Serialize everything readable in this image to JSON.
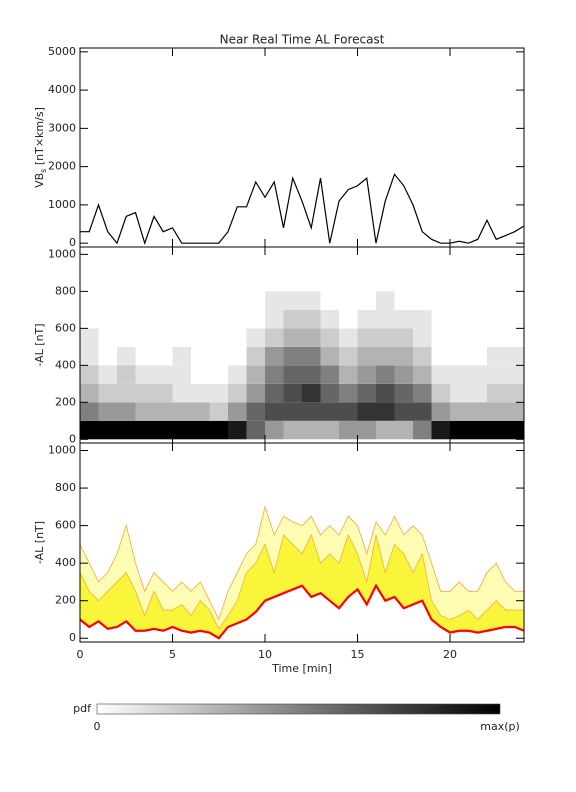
{
  "chart_data": [
    {
      "type": "line",
      "title": "Near Real Time AL Forecast",
      "ylabel": {
        "main": "VB",
        "sub": "s",
        "rest": " [nT×km/s]"
      },
      "xlim": [
        0,
        24
      ],
      "xticks": [
        0,
        5,
        10,
        15,
        20
      ],
      "ylim": [
        -100,
        5100
      ],
      "yticks": [
        0,
        1000,
        2000,
        3000,
        4000,
        5000
      ],
      "x": [
        0,
        0.5,
        1,
        1.5,
        2,
        2.5,
        3,
        3.5,
        4,
        4.5,
        5,
        5.5,
        6,
        6.5,
        7,
        7.5,
        8,
        8.5,
        9,
        9.5,
        10,
        10.5,
        11,
        11.5,
        12,
        12.5,
        13,
        13.5,
        14,
        14.5,
        15,
        15.5,
        16,
        16.5,
        17,
        17.5,
        18,
        18.5,
        19,
        19.5,
        20,
        20.5,
        21,
        21.5,
        22,
        22.5,
        23,
        23.5,
        24
      ],
      "series": [
        {
          "color": "#000000",
          "values": [
            300,
            300,
            1000,
            300,
            0,
            700,
            800,
            0,
            700,
            300,
            400,
            0,
            0,
            0,
            0,
            0,
            300,
            950,
            950,
            1600,
            1200,
            1600,
            400,
            1700,
            1100,
            400,
            1700,
            0,
            1100,
            1400,
            1500,
            1700,
            0,
            1100,
            1800,
            1500,
            1000,
            300,
            100,
            0,
            0,
            50,
            0,
            100,
            600,
            100,
            200,
            300,
            450
          ]
        }
      ]
    },
    {
      "type": "heatmap",
      "ylabel": "-AL [nT]",
      "xlim": [
        0,
        24
      ],
      "xticks": [
        0,
        5,
        10,
        15,
        20
      ],
      "ylim": [
        -20,
        1040
      ],
      "yticks": [
        0,
        200,
        400,
        600,
        800,
        1000
      ],
      "xbins": [
        0,
        1,
        2,
        3,
        4,
        5,
        6,
        7,
        8,
        9,
        10,
        11,
        12,
        13,
        14,
        15,
        16,
        17,
        18,
        19,
        20,
        21,
        22,
        23,
        24
      ],
      "ybins": [
        0,
        100,
        200,
        300,
        400,
        500,
        600,
        700,
        800
      ],
      "z": [
        [
          1,
          1,
          1,
          1,
          1,
          1,
          1,
          1,
          0.9,
          0.6,
          0.4,
          0.3,
          0.3,
          0.3,
          0.4,
          0.4,
          0.3,
          0.3,
          0.5,
          0.9,
          1,
          1,
          1,
          1
        ],
        [
          0.5,
          0.4,
          0.4,
          0.3,
          0.3,
          0.3,
          0.3,
          0.2,
          0.4,
          0.6,
          0.7,
          0.7,
          0.7,
          0.7,
          0.7,
          0.8,
          0.8,
          0.7,
          0.7,
          0.4,
          0.3,
          0.3,
          0.3,
          0.3
        ],
        [
          0.3,
          0.2,
          0.2,
          0.2,
          0.2,
          0.1,
          0.1,
          0.1,
          0.2,
          0.4,
          0.6,
          0.7,
          0.8,
          0.6,
          0.5,
          0.6,
          0.7,
          0.6,
          0.5,
          0.2,
          0.1,
          0.1,
          0.2,
          0.2
        ],
        [
          0.2,
          0.1,
          0.2,
          0.1,
          0.1,
          0.1,
          0,
          0,
          0.1,
          0.3,
          0.5,
          0.6,
          0.6,
          0.5,
          0.3,
          0.4,
          0.5,
          0.4,
          0.3,
          0.1,
          0.1,
          0.1,
          0.1,
          0.1
        ],
        [
          0.1,
          0,
          0.1,
          0,
          0,
          0.1,
          0,
          0,
          0,
          0.2,
          0.4,
          0.5,
          0.5,
          0.3,
          0.2,
          0.3,
          0.3,
          0.3,
          0.2,
          0,
          0,
          0,
          0.1,
          0.1
        ],
        [
          0.1,
          0,
          0,
          0,
          0,
          0,
          0,
          0,
          0,
          0.1,
          0.2,
          0.3,
          0.3,
          0.2,
          0.1,
          0.2,
          0.2,
          0.2,
          0.1,
          0,
          0,
          0,
          0,
          0
        ],
        [
          0,
          0,
          0,
          0,
          0,
          0,
          0,
          0,
          0,
          0,
          0.1,
          0.2,
          0.2,
          0.1,
          0,
          0.1,
          0.1,
          0.1,
          0.1,
          0,
          0,
          0,
          0,
          0
        ],
        [
          0,
          0,
          0,
          0,
          0,
          0,
          0,
          0,
          0,
          0,
          0.1,
          0.1,
          0.1,
          0,
          0,
          0,
          0.1,
          0,
          0,
          0,
          0,
          0,
          0,
          0
        ]
      ],
      "colorbar": {
        "label": "pdf",
        "min_label": "0",
        "max_label": "max(p)"
      }
    },
    {
      "type": "area",
      "ylabel": "-AL [nT]",
      "xlabel": "Time [min]",
      "xlim": [
        0,
        24
      ],
      "xticks": [
        0,
        5,
        10,
        15,
        20
      ],
      "ylim": [
        -20,
        1040
      ],
      "yticks": [
        0,
        200,
        400,
        600,
        800,
        1000
      ],
      "x": [
        0,
        0.5,
        1,
        1.5,
        2,
        2.5,
        3,
        3.5,
        4,
        4.5,
        5,
        5.5,
        6,
        6.5,
        7,
        7.5,
        8,
        8.5,
        9,
        9.5,
        10,
        10.5,
        11,
        11.5,
        12,
        12.5,
        13,
        13.5,
        14,
        14.5,
        15,
        15.5,
        16,
        16.5,
        17,
        17.5,
        18,
        18.5,
        19,
        19.5,
        20,
        20.5,
        21,
        21.5,
        22,
        22.5,
        23,
        23.5,
        24
      ],
      "series": [
        {
          "color": "#fffcb4",
          "edge": "#f5a840",
          "values": [
            500,
            400,
            300,
            350,
            450,
            600,
            400,
            250,
            350,
            300,
            250,
            300,
            250,
            300,
            200,
            100,
            250,
            350,
            450,
            500,
            700,
            550,
            650,
            620,
            600,
            650,
            550,
            600,
            550,
            650,
            600,
            450,
            620,
            550,
            650,
            550,
            600,
            550,
            400,
            250,
            250,
            300,
            250,
            250,
            350,
            400,
            300,
            250,
            250
          ]
        },
        {
          "color": "#f8f53a",
          "edge": "#f5b040",
          "values": [
            350,
            250,
            200,
            250,
            300,
            350,
            250,
            120,
            250,
            150,
            150,
            180,
            120,
            200,
            150,
            50,
            120,
            200,
            350,
            400,
            500,
            350,
            550,
            500,
            450,
            550,
            400,
            450,
            400,
            550,
            450,
            300,
            550,
            350,
            500,
            450,
            350,
            450,
            200,
            120,
            100,
            120,
            150,
            100,
            150,
            200,
            150,
            150,
            150
          ]
        },
        {
          "color": "#ffffff",
          "edge": "#ff0000",
          "values": [
            100,
            60,
            90,
            50,
            60,
            90,
            40,
            40,
            50,
            40,
            60,
            40,
            30,
            40,
            30,
            0,
            60,
            80,
            100,
            140,
            200,
            220,
            240,
            260,
            280,
            220,
            240,
            200,
            160,
            220,
            260,
            180,
            280,
            200,
            220,
            160,
            180,
            200,
            100,
            60,
            30,
            40,
            40,
            30,
            40,
            50,
            60,
            60,
            40
          ]
        }
      ]
    }
  ]
}
